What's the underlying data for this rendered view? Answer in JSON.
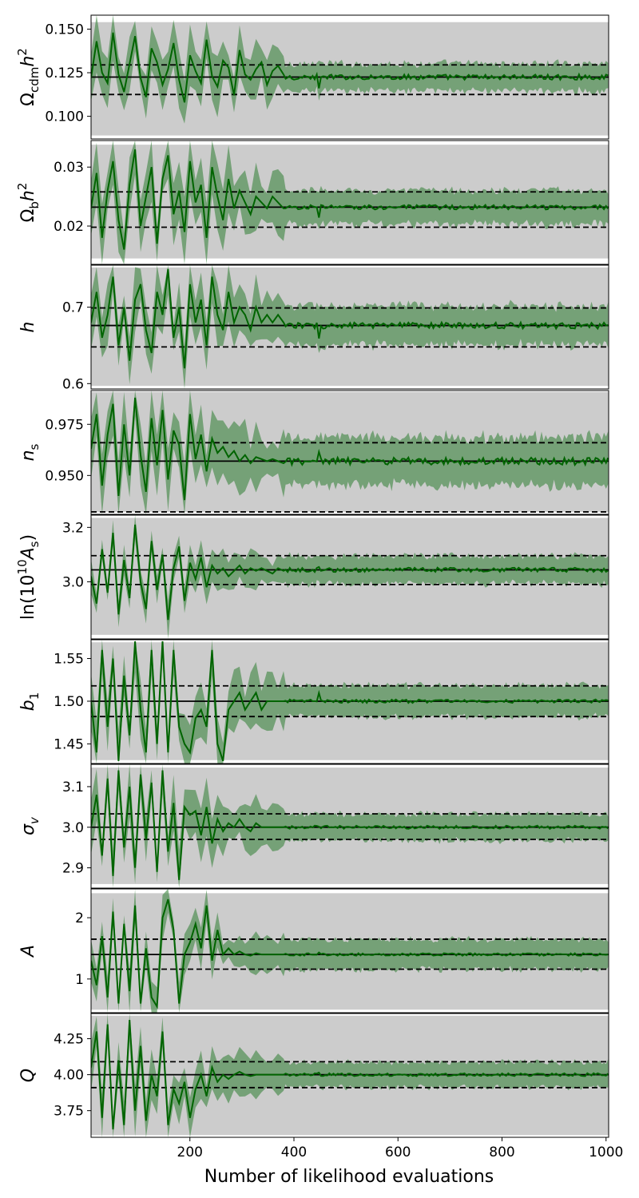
{
  "chart_data": {
    "type": "line",
    "xlabel": "Number of likelihood evaluations",
    "xlim": [
      10,
      1005
    ],
    "xticks": [
      200,
      400,
      600,
      800,
      1000
    ],
    "xtick_labels": [
      "200",
      "400",
      "600",
      "800",
      "1000"
    ],
    "colors": {
      "prior_band": "#cccccc",
      "posterior_band": "#2e7d32",
      "mean_line": "#006400",
      "reference": "#000000"
    },
    "panels": [
      {
        "ylabel": "Ω_cdm h²",
        "ylabel_parts": [
          {
            "t": "Ω"
          },
          {
            "t": "cdm",
            "sub": true
          },
          {
            "t": "h",
            "italic": true
          },
          {
            "t": "2",
            "sup": true
          }
        ],
        "ylim": [
          0.087,
          0.158
        ],
        "yticks": [
          0.1,
          0.125,
          0.15
        ],
        "ytick_labels": [
          "0.100",
          "0.125",
          "0.150"
        ],
        "prior": [
          0.089,
          0.154
        ],
        "truth": 0.1225,
        "lower": 0.1125,
        "upper": 0.1295,
        "mean_early": [
          0.122,
          0.143,
          0.125,
          0.119,
          0.148,
          0.124,
          0.114,
          0.13,
          0.146,
          0.122,
          0.111,
          0.139,
          0.131,
          0.118,
          0.127,
          0.142,
          0.121,
          0.108,
          0.135,
          0.126,
          0.119,
          0.144,
          0.123,
          0.117,
          0.132,
          0.128,
          0.112,
          0.138,
          0.124,
          0.121,
          0.127,
          0.131,
          0.118,
          0.126,
          0.129,
          0.124
        ],
        "spread_early": 0.012,
        "mean_late": 0.1225,
        "halfwidth_late": 0.0075,
        "noise_late": 0.0015,
        "spikes": [
          [
            375,
            0.108
          ],
          [
            448,
            0.109
          ]
        ]
      },
      {
        "ylabel": "Ω_b h²",
        "ylabel_parts": [
          {
            "t": "Ω"
          },
          {
            "t": "b",
            "sub": true
          },
          {
            "t": "h",
            "italic": true
          },
          {
            "t": "2",
            "sup": true
          }
        ],
        "ylim": [
          0.0135,
          0.0345
        ],
        "yticks": [
          0.02,
          0.03
        ],
        "ytick_labels": [
          "0.02",
          "0.03"
        ],
        "prior": [
          0.0145,
          0.0338
        ],
        "truth": 0.0232,
        "lower": 0.0198,
        "upper": 0.0258,
        "mean_early": [
          0.023,
          0.029,
          0.018,
          0.026,
          0.031,
          0.021,
          0.016,
          0.027,
          0.033,
          0.02,
          0.025,
          0.03,
          0.017,
          0.028,
          0.032,
          0.022,
          0.026,
          0.019,
          0.031,
          0.024,
          0.027,
          0.018,
          0.03,
          0.025,
          0.021,
          0.028,
          0.023,
          0.026,
          0.024,
          0.022,
          0.025,
          0.024,
          0.023,
          0.025,
          0.024,
          0.023
        ],
        "spread_early": 0.004,
        "mean_late": 0.0232,
        "halfwidth_late": 0.0028,
        "noise_late": 0.0004,
        "spikes": [
          [
            375,
            0.0165
          ],
          [
            448,
            0.0195
          ]
        ]
      },
      {
        "ylabel": "h",
        "ylabel_parts": [
          {
            "t": "h",
            "italic": true
          }
        ],
        "ylim": [
          0.593,
          0.755
        ],
        "yticks": [
          0.6,
          0.7
        ],
        "ytick_labels": [
          "0.6",
          "0.7"
        ],
        "prior": [
          0.597,
          0.752
        ],
        "truth": 0.676,
        "lower": 0.648,
        "upper": 0.699,
        "mean_early": [
          0.68,
          0.72,
          0.66,
          0.69,
          0.74,
          0.65,
          0.7,
          0.63,
          0.71,
          0.73,
          0.67,
          0.64,
          0.72,
          0.69,
          0.75,
          0.66,
          0.7,
          0.62,
          0.73,
          0.68,
          0.71,
          0.65,
          0.74,
          0.69,
          0.67,
          0.72,
          0.68,
          0.7,
          0.69,
          0.67,
          0.7,
          0.68,
          0.69,
          0.68,
          0.69,
          0.68
        ],
        "spread_early": 0.03,
        "mean_late": 0.676,
        "halfwidth_late": 0.025,
        "noise_late": 0.004,
        "spikes": [
          [
            375,
            0.605
          ],
          [
            448,
            0.64
          ]
        ]
      },
      {
        "ylabel": "n_s",
        "ylabel_parts": [
          {
            "t": "n",
            "italic": true
          },
          {
            "t": "s",
            "sub": true
          }
        ],
        "ylim": [
          0.931,
          0.9915
        ],
        "yticks": [
          0.95,
          0.975
        ],
        "ytick_labels": [
          "0.950",
          "0.975"
        ],
        "prior": [
          0.9322,
          0.9908
        ],
        "truth": 0.957,
        "lower": 0.9322,
        "upper": 0.966,
        "mean_early": [
          0.963,
          0.98,
          0.945,
          0.97,
          0.985,
          0.94,
          0.975,
          0.95,
          0.988,
          0.96,
          0.942,
          0.978,
          0.955,
          0.982,
          0.948,
          0.972,
          0.965,
          0.938,
          0.98,
          0.958,
          0.97,
          0.952,
          0.968,
          0.961,
          0.964,
          0.959,
          0.962,
          0.957,
          0.96,
          0.956,
          0.959,
          0.958,
          0.957,
          0.958,
          0.957,
          0.956
        ],
        "spread_early": 0.012,
        "mean_late": 0.957,
        "halfwidth_late": 0.0115,
        "noise_late": 0.0018,
        "spikes": [
          [
            375,
            0.96
          ],
          [
            448,
            0.965
          ]
        ]
      },
      {
        "ylabel": "ln(10¹⁰A_s)",
        "ylabel_parts": [
          {
            "t": "ln(10"
          },
          {
            "t": "10",
            "sup": true
          },
          {
            "t": "A",
            "italic": true
          },
          {
            "t": "s",
            "sub": true
          },
          {
            "t": ")"
          }
        ],
        "ylim": [
          2.79,
          3.245
        ],
        "yticks": [
          3.0,
          3.2
        ],
        "ytick_labels": [
          "3.0",
          "3.2"
        ],
        "prior": [
          2.805,
          3.235
        ],
        "truth": 3.044,
        "lower": 2.99,
        "upper": 3.096,
        "mean_early": [
          3.02,
          2.92,
          3.12,
          2.96,
          3.18,
          2.88,
          3.08,
          2.94,
          3.21,
          3.0,
          2.9,
          3.15,
          2.97,
          3.1,
          2.86,
          3.05,
          3.13,
          2.93,
          3.07,
          3.01,
          3.09,
          2.98,
          3.06,
          3.03,
          3.05,
          3.02,
          3.04,
          3.06,
          3.03,
          3.05,
          3.04,
          3.05,
          3.04,
          3.03,
          3.05,
          3.04
        ],
        "spread_early": 0.05,
        "mean_late": 3.044,
        "halfwidth_late": 0.05,
        "noise_late": 0.008,
        "spikes": [
          [
            375,
            3.16
          ],
          [
            448,
            3.06
          ]
        ]
      },
      {
        "ylabel": "b_1",
        "ylabel_parts": [
          {
            "t": "b",
            "italic": true
          },
          {
            "t": "1",
            "sub": true
          }
        ],
        "ylim": [
          1.427,
          1.572
        ],
        "yticks": [
          1.45,
          1.5,
          1.55
        ],
        "ytick_labels": [
          "1.45",
          "1.50",
          "1.55"
        ],
        "prior": [
          1.431,
          1.569
        ],
        "truth": 1.5,
        "lower": 1.482,
        "upper": 1.518,
        "mean_early": [
          1.5,
          1.44,
          1.56,
          1.47,
          1.55,
          1.43,
          1.53,
          1.46,
          1.57,
          1.49,
          1.44,
          1.56,
          1.45,
          1.57,
          1.44,
          1.56,
          1.47,
          1.45,
          1.44,
          1.48,
          1.49,
          1.47,
          1.56,
          1.45,
          1.43,
          1.49,
          1.5,
          1.51,
          1.49,
          1.5,
          1.51,
          1.49,
          1.5,
          1.5,
          1.5,
          1.5
        ],
        "spread_early": 0.025,
        "mean_late": 1.5,
        "halfwidth_late": 0.018,
        "noise_late": 0.002,
        "spikes": [
          [
            375,
            1.525
          ],
          [
            448,
            1.518
          ]
        ]
      },
      {
        "ylabel": "σ_v",
        "ylabel_parts": [
          {
            "t": "σ",
            "italic": true
          },
          {
            "t": "v",
            "sub": true,
            "italic": true
          }
        ],
        "ylim": [
          2.85,
          3.155
        ],
        "yticks": [
          2.9,
          3.0,
          3.1
        ],
        "ytick_labels": [
          "2.9",
          "3.0",
          "3.1"
        ],
        "prior": [
          2.86,
          3.147
        ],
        "truth": 3.0,
        "lower": 2.97,
        "upper": 3.033,
        "mean_early": [
          3.0,
          3.08,
          2.93,
          3.12,
          2.88,
          3.14,
          2.95,
          3.1,
          2.9,
          3.13,
          2.97,
          3.11,
          2.89,
          3.14,
          2.94,
          3.06,
          2.87,
          3.05,
          3.03,
          3.04,
          2.98,
          3.05,
          2.96,
          3.02,
          2.99,
          3.01,
          3.0,
          3.02,
          3.0,
          2.99,
          3.01,
          3.0,
          3.0,
          3.0,
          3.0,
          3.0
        ],
        "spread_early": 0.05,
        "mean_late": 3.0,
        "halfwidth_late": 0.032,
        "noise_late": 0.004,
        "spikes": [
          [
            375,
            2.98
          ],
          [
            448,
            3.0
          ]
        ]
      },
      {
        "ylabel": "A",
        "ylabel_parts": [
          {
            "t": "A",
            "italic": true
          }
        ],
        "ylim": [
          0.45,
          2.47
        ],
        "yticks": [
          1.0,
          2.0
        ],
        "ytick_labels": [
          "1",
          "2"
        ],
        "prior": [
          0.5,
          2.4
        ],
        "truth": 1.4,
        "lower": 1.16,
        "upper": 1.65,
        "mean_early": [
          1.3,
          0.9,
          1.7,
          0.7,
          2.1,
          0.6,
          1.9,
          0.8,
          2.2,
          0.6,
          1.5,
          0.7,
          0.55,
          2.0,
          2.3,
          1.8,
          0.6,
          1.4,
          1.6,
          1.9,
          1.5,
          2.2,
          1.3,
          1.8,
          1.4,
          1.5,
          1.4,
          1.45,
          1.4,
          1.38,
          1.42,
          1.4,
          1.4,
          1.4,
          1.4,
          1.4
        ],
        "spread_early": 0.25,
        "mean_late": 1.4,
        "halfwidth_late": 0.24,
        "noise_late": 0.02,
        "spikes": [
          [
            375,
            2.25
          ],
          [
            448,
            1.45
          ]
        ]
      },
      {
        "ylabel": "Q",
        "ylabel_parts": [
          {
            "t": "Q",
            "italic": true
          }
        ],
        "ylim": [
          3.565,
          4.425
        ],
        "yticks": [
          3.75,
          4.0,
          4.25
        ],
        "ytick_labels": [
          "3.75",
          "4.00",
          "4.25"
        ],
        "prior": [
          3.58,
          4.41
        ],
        "truth": 4.0,
        "lower": 3.91,
        "upper": 4.09,
        "mean_early": [
          4.05,
          4.3,
          3.7,
          4.35,
          3.62,
          4.1,
          3.65,
          4.38,
          3.75,
          4.2,
          3.68,
          4.0,
          3.85,
          4.3,
          3.65,
          3.9,
          3.8,
          3.95,
          3.7,
          3.9,
          4.0,
          3.85,
          4.05,
          3.95,
          4.0,
          3.97,
          4.0,
          4.02,
          4.0,
          3.99,
          4.0,
          4.0,
          4.0,
          4.0,
          4.0,
          4.0
        ],
        "spread_early": 0.12,
        "mean_late": 4.0,
        "halfwidth_late": 0.085,
        "noise_late": 0.01,
        "spikes": [
          [
            375,
            3.7
          ],
          [
            448,
            4.02
          ]
        ]
      }
    ]
  }
}
